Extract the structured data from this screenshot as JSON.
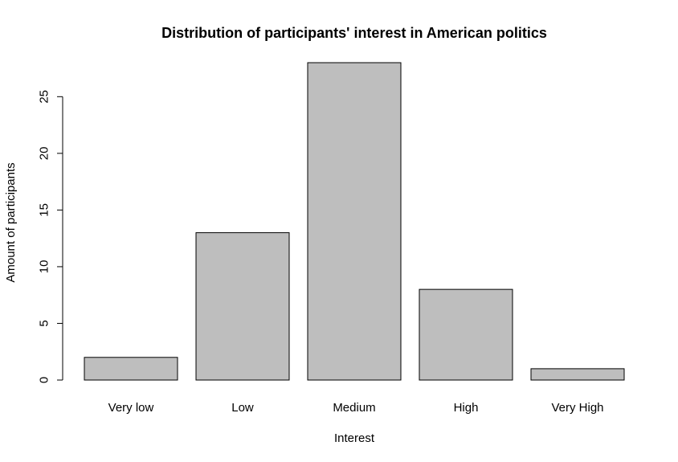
{
  "chart_data": {
    "type": "bar",
    "title": "Distribution of participants' interest in American politics",
    "xlabel": "Interest",
    "ylabel": "Amount of participants",
    "categories": [
      "Very low",
      "Low",
      "Medium",
      "High",
      "Very High"
    ],
    "values": [
      2,
      13,
      28,
      8,
      1
    ],
    "ylim": [
      0,
      28
    ],
    "yticks": [
      "0",
      "5",
      "10",
      "15",
      "20",
      "25"
    ],
    "grid": false,
    "legend": "none",
    "colors": {
      "bar_fill": "#bebebe",
      "bar_stroke": "#000000",
      "axis": "#000000",
      "background": "#ffffff"
    }
  }
}
